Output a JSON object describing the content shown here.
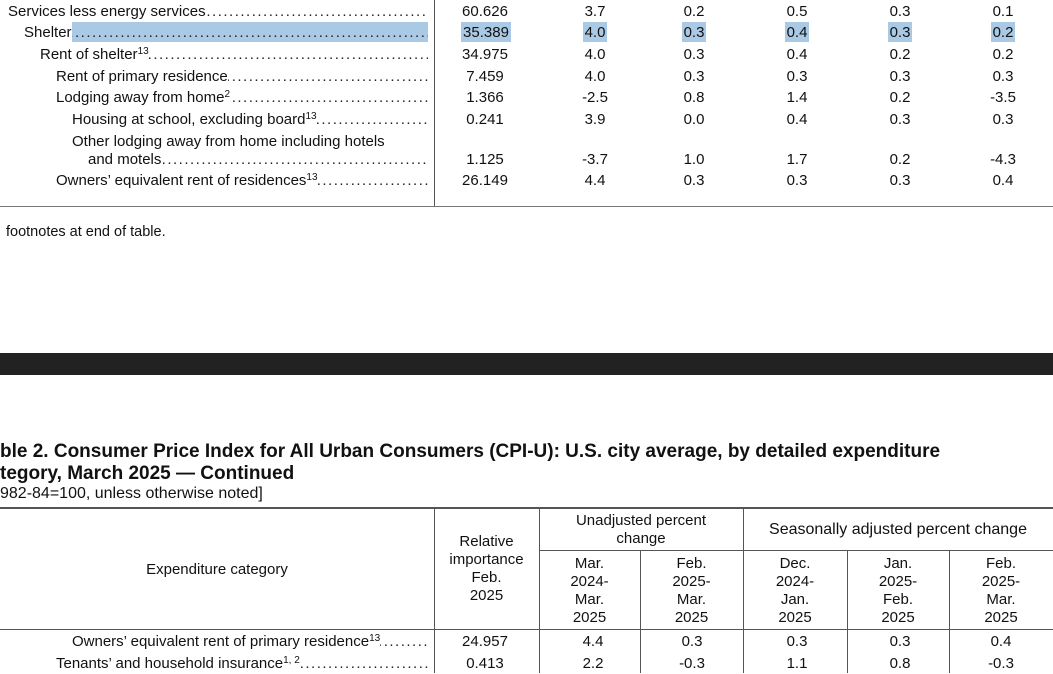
{
  "top_rows": [
    {
      "label": "Services less energy services",
      "sup": "",
      "indent": 8,
      "values": [
        "60.626",
        "3.7",
        "0.2",
        "0.5",
        "0.3",
        "0.1"
      ],
      "highlight": false
    },
    {
      "label": "Shelter",
      "sup": "",
      "indent": 24,
      "values": [
        "35.389",
        "4.0",
        "0.3",
        "0.4",
        "0.3",
        "0.2"
      ],
      "highlight": true
    },
    {
      "label": "Rent of shelter",
      "sup": "13",
      "indent": 40,
      "values": [
        "34.975",
        "4.0",
        "0.3",
        "0.4",
        "0.2",
        "0.2"
      ],
      "highlight": false
    },
    {
      "label": "Rent of primary residence",
      "sup": "",
      "indent": 56,
      "values": [
        "7.459",
        "4.0",
        "0.3",
        "0.3",
        "0.3",
        "0.3"
      ],
      "highlight": false
    },
    {
      "label": "Lodging away from home",
      "sup": "2",
      "indent": 56,
      "values": [
        "1.366",
        "-2.5",
        "0.8",
        "1.4",
        "0.2",
        "-3.5"
      ],
      "highlight": false
    },
    {
      "label": "Housing at school, excluding board",
      "sup": "13",
      "indent": 72,
      "values": [
        "0.241",
        "3.9",
        "0.0",
        "0.4",
        "0.3",
        "0.3"
      ],
      "highlight": false
    },
    {
      "label_line1": "Other lodging away from home including hotels",
      "label": "and motels",
      "sup": "",
      "indent": 88,
      "values": [
        "1.125",
        "-3.7",
        "1.0",
        "1.7",
        "0.2",
        "-4.3"
      ],
      "highlight": false
    },
    {
      "label": "Owners’ equivalent rent of residences",
      "sup": "13",
      "indent": 56,
      "values": [
        "26.149",
        "4.4",
        "0.3",
        "0.3",
        "0.3",
        "0.4"
      ],
      "highlight": false
    }
  ],
  "footnote_text": "footnotes at end of table.",
  "title_line1": "ble 2. Consumer Price Index for All Urban Consumers (CPI-U): U.S. city average, by detailed expenditure",
  "title_line2": "tegory, March 2025 — Continued",
  "subtitle": "982-84=100, unless otherwise noted]",
  "header": {
    "category": "Expenditure category",
    "relative": [
      "Relative",
      "importance",
      "Feb.",
      "2025"
    ],
    "unadjusted_group": [
      "Unadjusted percent",
      "change"
    ],
    "seasonal_group": "Seasonally adjusted percent change",
    "periods": [
      [
        "Mar.",
        "2024-",
        "Mar.",
        "2025"
      ],
      [
        "Feb.",
        "2025-",
        "Mar.",
        "2025"
      ],
      [
        "Dec.",
        "2024-",
        "Jan.",
        "2025"
      ],
      [
        "Jan.",
        "2025-",
        "Feb.",
        "2025"
      ],
      [
        "Feb.",
        "2025-",
        "Mar.",
        "2025"
      ]
    ]
  },
  "bottom_rows": [
    {
      "label": "Owners’ equivalent rent of primary residence",
      "sup": "13",
      "values": [
        "24.957",
        "4.4",
        "0.3",
        "0.3",
        "0.3",
        "0.4"
      ]
    },
    {
      "label": "Tenants’ and household insurance",
      "sup": "1, 2",
      "values": [
        "0.413",
        "2.2",
        "-0.3",
        "1.1",
        "0.8",
        "-0.3"
      ]
    }
  ],
  "colors": {
    "highlight": "#a9c9e4",
    "band": "#222222",
    "rule": "#555555"
  }
}
